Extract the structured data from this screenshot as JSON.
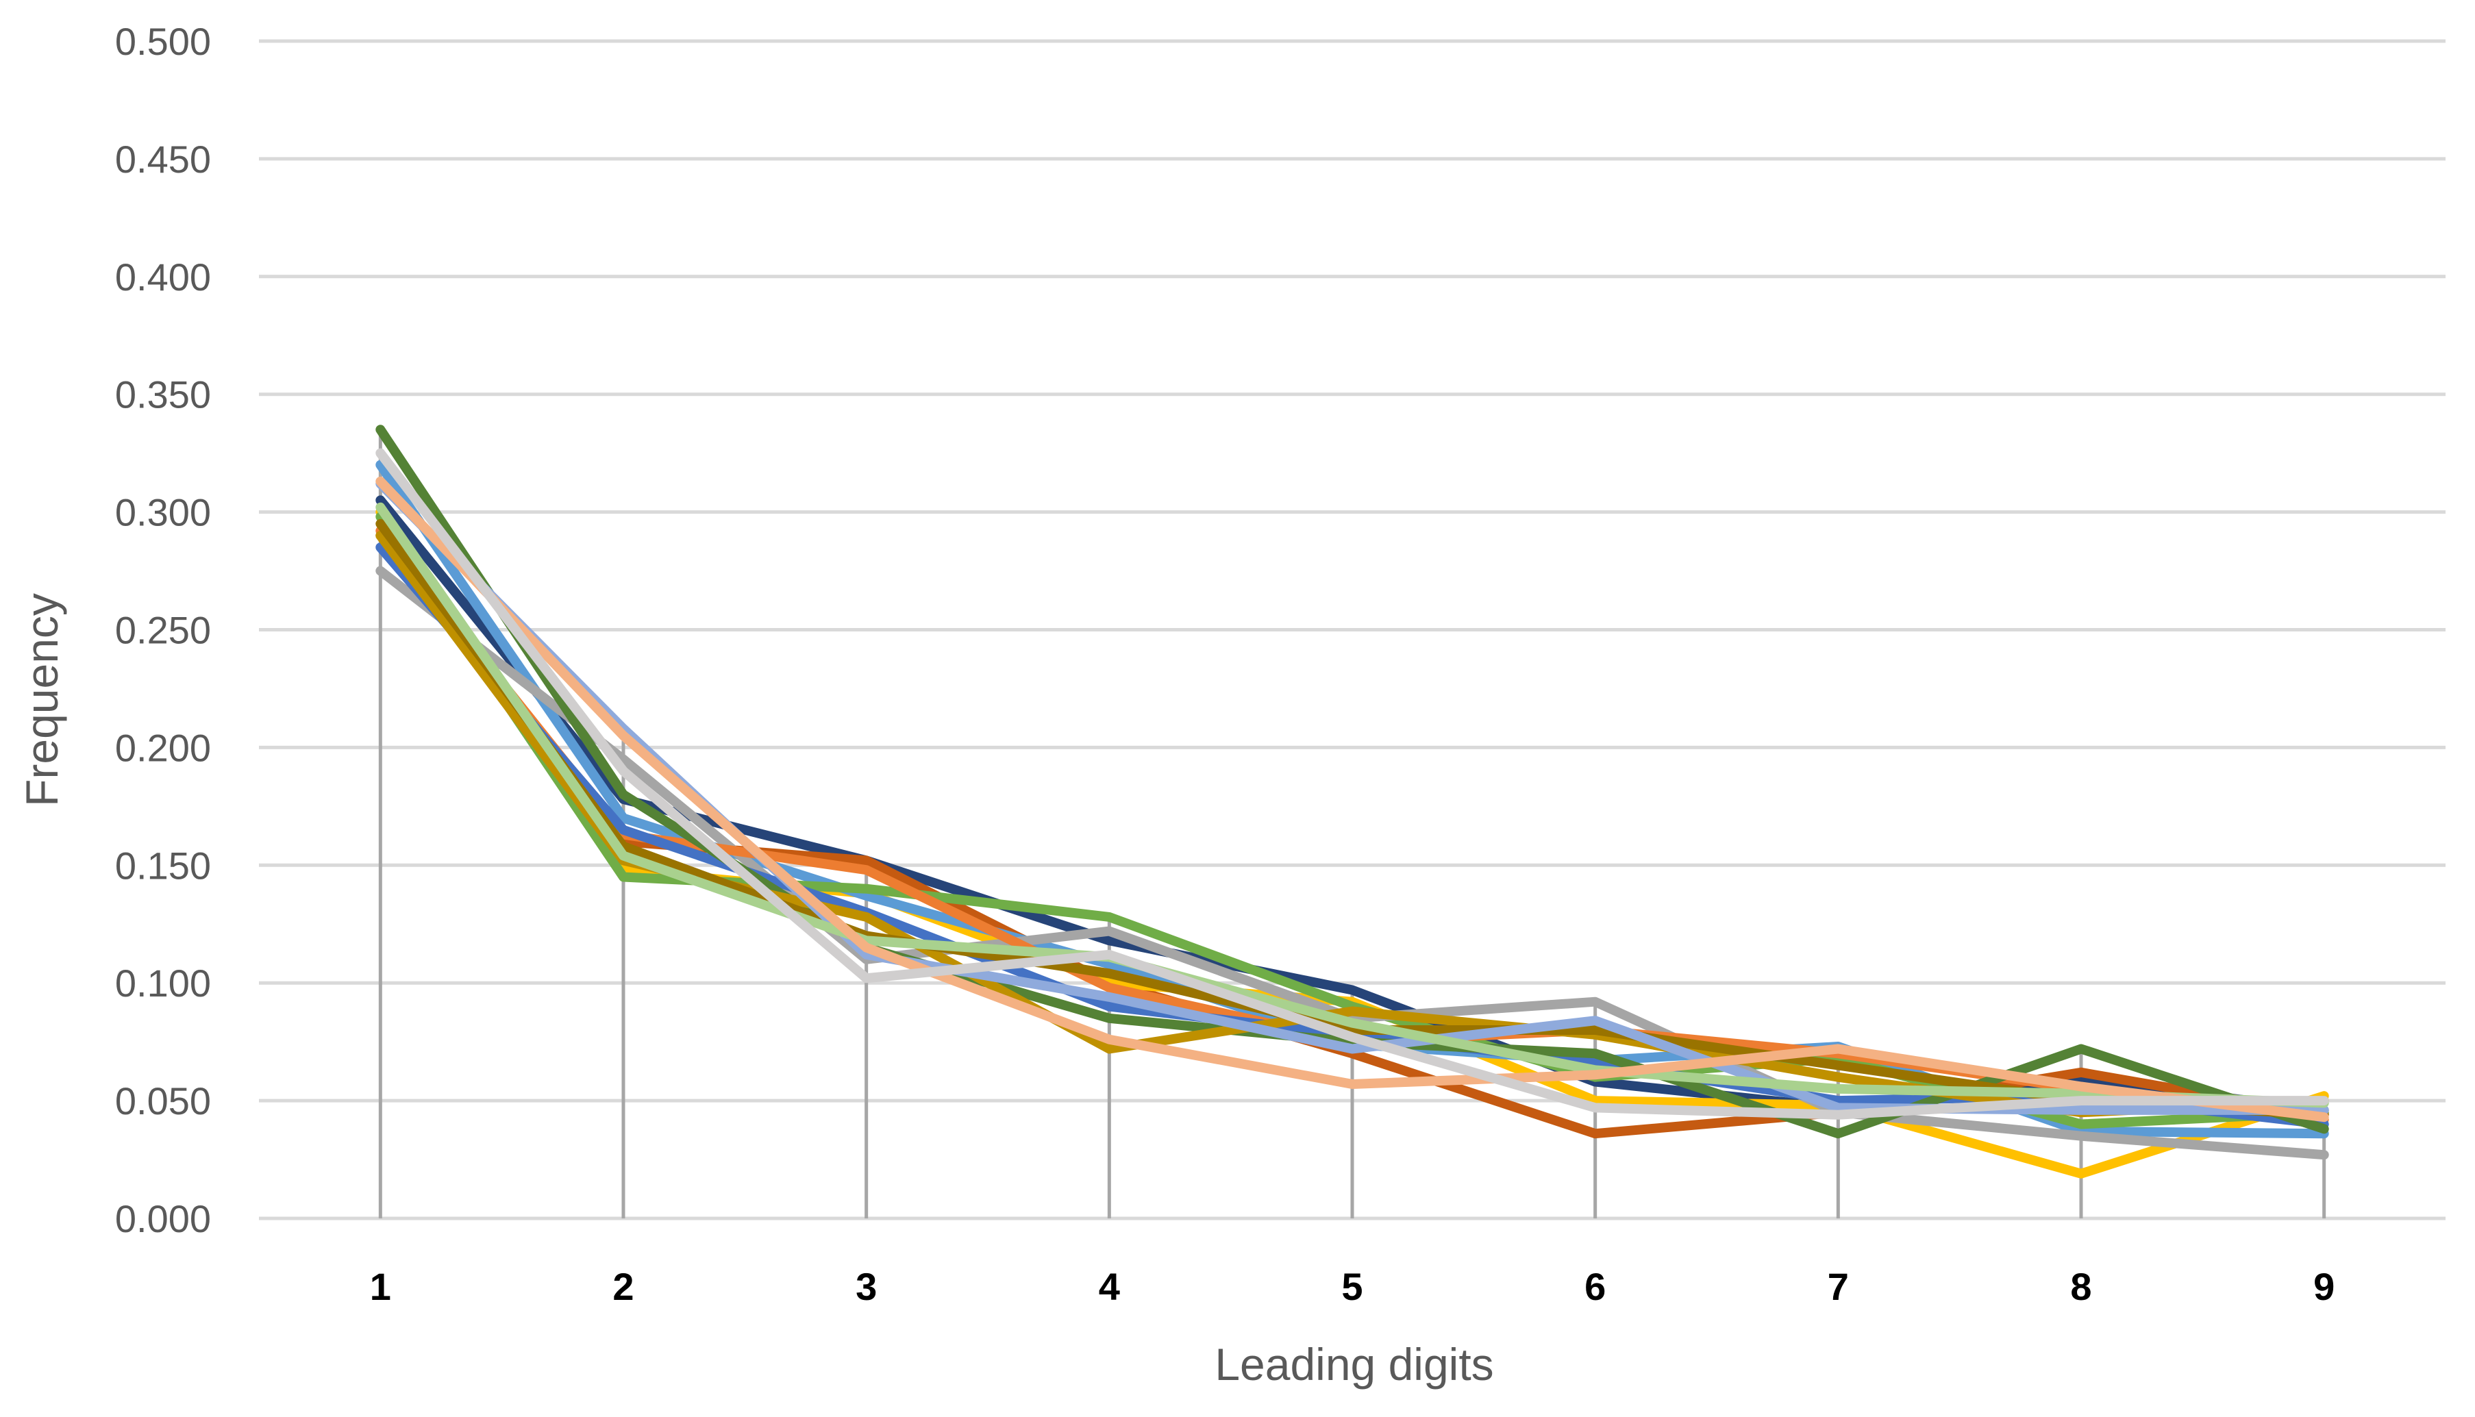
{
  "chart_data": {
    "type": "line",
    "title": "",
    "xlabel": "Leading digits",
    "ylabel": "Frequency",
    "categories": [
      "1",
      "2",
      "3",
      "4",
      "5",
      "6",
      "7",
      "8",
      "9"
    ],
    "ylim": [
      0,
      0.5
    ],
    "yticks": [
      "0.000",
      "0.050",
      "0.100",
      "0.150",
      "0.200",
      "0.250",
      "0.300",
      "0.350",
      "0.400",
      "0.450",
      "0.500"
    ],
    "grid": true,
    "legend": "none",
    "drop_lines": true,
    "series": [
      {
        "color": "#264478",
        "values": [
          0.305,
          0.178,
          0.152,
          0.118,
          0.097,
          0.058,
          0.047,
          0.059,
          0.046
        ]
      },
      {
        "color": "#C55A11",
        "values": [
          0.29,
          0.16,
          0.152,
          0.1,
          0.07,
          0.036,
          0.045,
          0.062,
          0.044
        ]
      },
      {
        "color": "#FFC000",
        "values": [
          0.3,
          0.148,
          0.138,
          0.1,
          0.092,
          0.05,
          0.048,
          0.019,
          0.052
        ]
      },
      {
        "color": "#5B9BD5",
        "values": [
          0.32,
          0.17,
          0.137,
          0.108,
          0.074,
          0.067,
          0.073,
          0.037,
          0.036
        ]
      },
      {
        "color": "#70AD47",
        "values": [
          0.298,
          0.145,
          0.14,
          0.128,
          0.09,
          0.06,
          0.068,
          0.04,
          0.045
        ]
      },
      {
        "color": "#A5A5A5",
        "values": [
          0.275,
          0.195,
          0.11,
          0.122,
          0.085,
          0.092,
          0.045,
          0.035,
          0.027
        ]
      },
      {
        "color": "#ED7D31",
        "values": [
          0.292,
          0.163,
          0.148,
          0.098,
          0.075,
          0.08,
          0.07,
          0.055,
          0.042
        ]
      },
      {
        "color": "#4472C4",
        "values": [
          0.285,
          0.165,
          0.13,
          0.09,
          0.078,
          0.066,
          0.05,
          0.052,
          0.04
        ]
      },
      {
        "color": "#548235",
        "values": [
          0.335,
          0.18,
          0.115,
          0.085,
          0.075,
          0.07,
          0.036,
          0.072,
          0.038
        ]
      },
      {
        "color": "#BF9000",
        "values": [
          0.29,
          0.152,
          0.128,
          0.072,
          0.088,
          0.078,
          0.06,
          0.045,
          0.05
        ]
      },
      {
        "color": "#997300",
        "values": [
          0.295,
          0.158,
          0.12,
          0.104,
          0.08,
          0.08,
          0.065,
          0.05,
          0.044
        ]
      },
      {
        "color": "#8FAADC",
        "values": [
          0.312,
          0.208,
          0.112,
          0.094,
          0.072,
          0.084,
          0.047,
          0.046,
          0.046
        ]
      },
      {
        "color": "#A9D18E",
        "values": [
          0.302,
          0.154,
          0.118,
          0.111,
          0.083,
          0.063,
          0.055,
          0.053,
          0.049
        ]
      },
      {
        "color": "#F4B183",
        "values": [
          0.313,
          0.205,
          0.115,
          0.076,
          0.057,
          0.061,
          0.072,
          0.056,
          0.043
        ]
      },
      {
        "color": "#D0CECE",
        "values": [
          0.325,
          0.19,
          0.102,
          0.112,
          0.077,
          0.047,
          0.044,
          0.05,
          0.05
        ]
      }
    ]
  }
}
